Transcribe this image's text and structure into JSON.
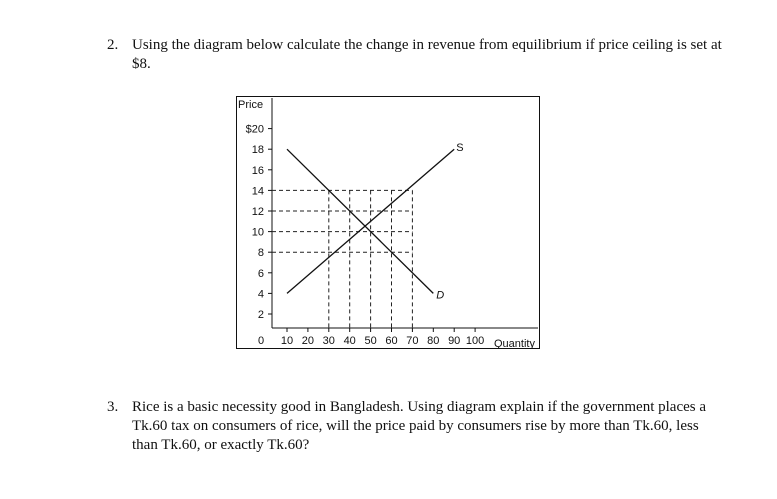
{
  "question2": {
    "number": "2.",
    "text": "Using the diagram below calculate the change in revenue from equilibrium if price ceiling is set at $8."
  },
  "figure": {
    "price_axis_label": "Price",
    "quantity_axis_label": "Quantity",
    "origin_label": "0",
    "y_ticks": [
      "$20",
      "18",
      "16",
      "14",
      "12",
      "10",
      "8",
      "6",
      "4",
      "2"
    ],
    "y_tick_values": [
      20,
      18,
      16,
      14,
      12,
      10,
      8,
      6,
      4,
      2
    ],
    "x_ticks": [
      "10",
      "20",
      "30",
      "40",
      "50",
      "60",
      "70",
      "80",
      "90",
      "100"
    ],
    "x_tick_values": [
      10,
      20,
      30,
      40,
      50,
      60,
      70,
      80,
      90,
      100
    ],
    "supply_label": "S",
    "demand_label": "D",
    "supply": {
      "from": [
        10,
        4
      ],
      "to": [
        90,
        18
      ]
    },
    "demand": {
      "from": [
        10,
        18
      ],
      "to": [
        80,
        4
      ]
    },
    "guide_lines": {
      "horizontal_prices": [
        14,
        12,
        10,
        8
      ],
      "vertical_quantities": [
        30,
        40,
        50,
        60,
        70
      ]
    }
  },
  "question3": {
    "number": "3.",
    "text": "Rice is a basic necessity good in Bangladesh. Using diagram explain if the government places a Tk.60 tax on consumers of rice, will the price paid by consumers rise by more than Tk.60, less than Tk.60, or exactly Tk.60?"
  }
}
